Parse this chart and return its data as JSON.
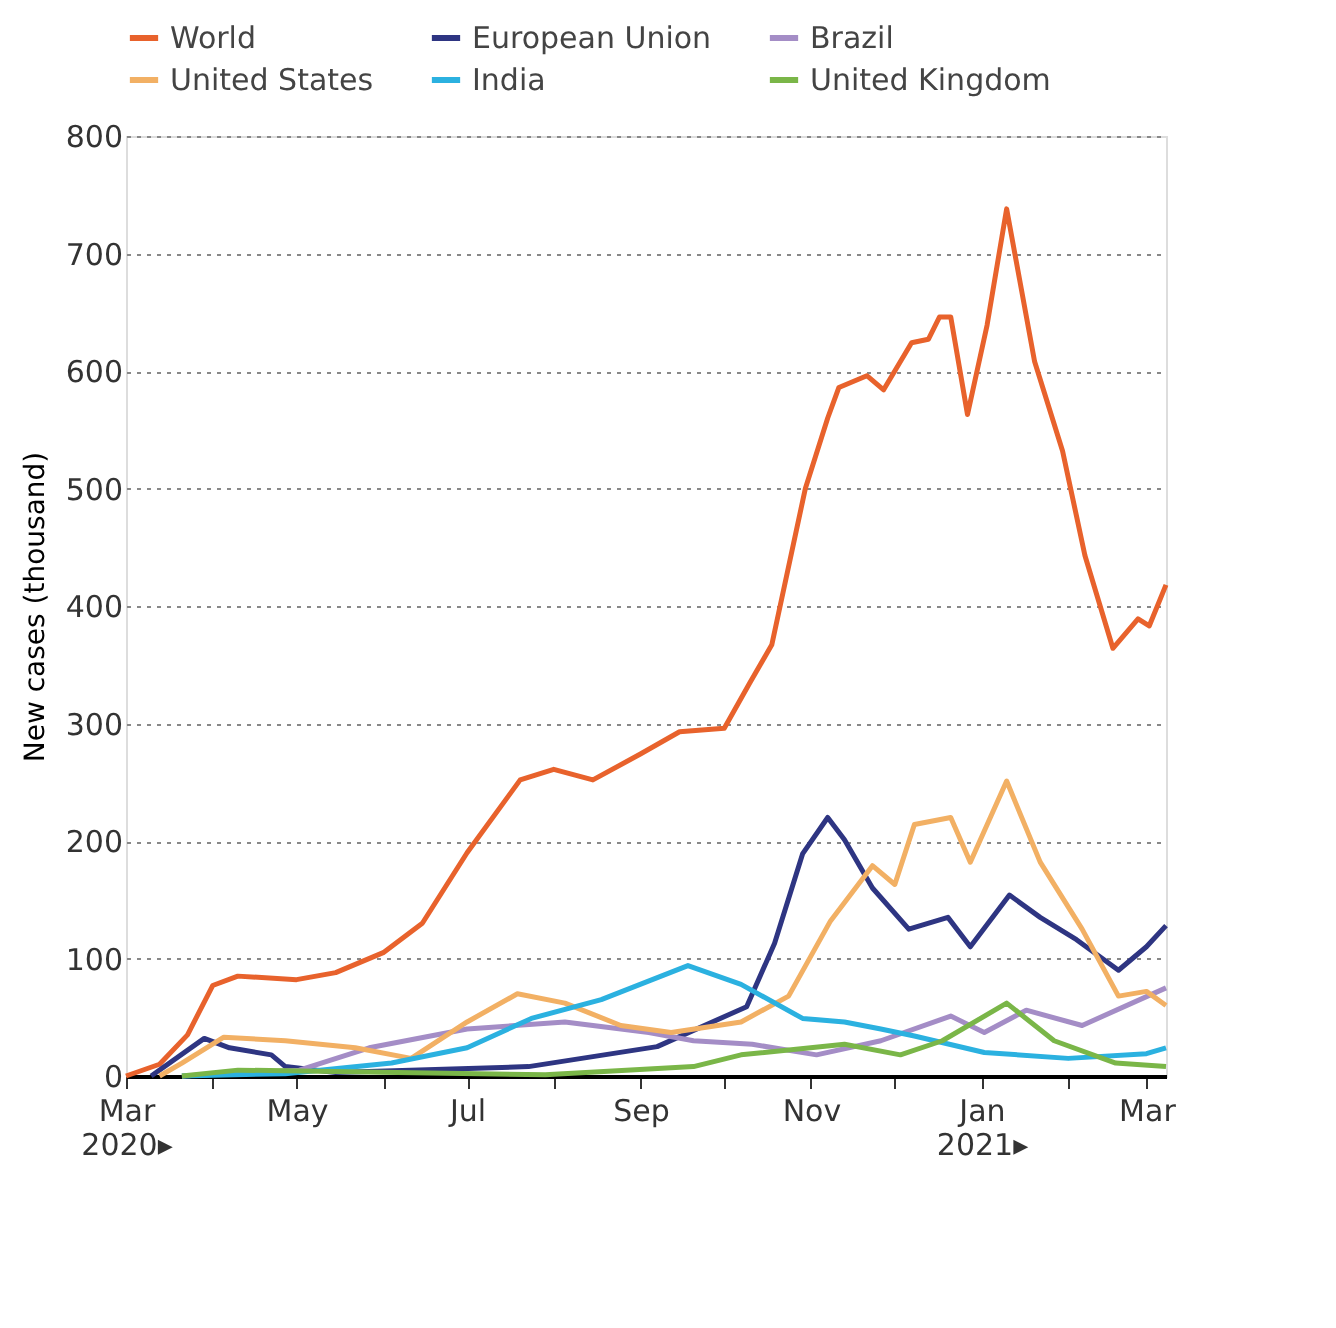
{
  "chart_data": {
    "type": "line",
    "ylabel": "New cases (thousand)",
    "xlim": [
      "2020-03-01",
      "2021-03-08"
    ],
    "ylim": [
      0,
      800
    ],
    "yticks": [
      0,
      100,
      200,
      300,
      400,
      500,
      600,
      700,
      800
    ],
    "xticks": [
      {
        "value": "2020-03-01",
        "label": "Mar\n2020▸"
      },
      {
        "value": "2020-04-01",
        "label": null
      },
      {
        "value": "2020-05-01",
        "label": "May"
      },
      {
        "value": "2020-06-01",
        "label": null
      },
      {
        "value": "2020-07-01",
        "label": "Jul"
      },
      {
        "value": "2020-08-01",
        "label": null
      },
      {
        "value": "2020-09-01",
        "label": "Sep"
      },
      {
        "value": "2020-10-01",
        "label": null
      },
      {
        "value": "2020-11-01",
        "label": "Nov"
      },
      {
        "value": "2020-12-01",
        "label": null
      },
      {
        "value": "2021-01-01",
        "label": "Jan\n2021▸"
      },
      {
        "value": "2021-02-01",
        "label": null
      },
      {
        "value": "2021-03-01",
        "label": "Mar"
      }
    ],
    "grid": "y",
    "legend": "top left",
    "marker": "none",
    "line_style": "solid",
    "series": [
      {
        "name": "World",
        "color": "#e8622c",
        "x": [
          "2020-03-01",
          "2020-03-13",
          "2020-03-23",
          "2020-04-01",
          "2020-04-10",
          "2020-05-01",
          "2020-05-15",
          "2020-06-01",
          "2020-06-15",
          "2020-07-01",
          "2020-07-20",
          "2020-08-01",
          "2020-08-15",
          "2020-09-01",
          "2020-09-15",
          "2020-10-01",
          "2020-10-10",
          "2020-10-18",
          "2020-10-30",
          "2020-11-07",
          "2020-11-11",
          "2020-11-21",
          "2020-11-27",
          "2020-12-07",
          "2020-12-13",
          "2020-12-17",
          "2020-12-21",
          "2020-12-27",
          "2021-01-03",
          "2021-01-10",
          "2021-01-20",
          "2021-01-30",
          "2021-02-07",
          "2021-02-17",
          "2021-02-26",
          "2021-03-02",
          "2021-03-08"
        ],
        "values": [
          0,
          10,
          35,
          77,
          85,
          82,
          88,
          105,
          130,
          190,
          252,
          261,
          252,
          274,
          293,
          296,
          334,
          367,
          500,
          560,
          586,
          596,
          584,
          624,
          627,
          646,
          646,
          563,
          639,
          738,
          608,
          532,
          443,
          364,
          389,
          383,
          418
        ]
      },
      {
        "name": "European Union",
        "color": "#2e3582",
        "x": [
          "2020-03-10",
          "2020-03-29",
          "2020-04-07",
          "2020-04-22",
          "2020-04-27",
          "2020-05-15",
          "2020-07-23",
          "2020-09-07",
          "2020-10-09",
          "2020-10-19",
          "2020-10-29",
          "2020-11-07",
          "2020-11-13",
          "2020-11-23",
          "2020-12-06",
          "2020-12-20",
          "2020-12-28",
          "2021-01-11",
          "2021-01-22",
          "2021-02-04",
          "2021-02-19",
          "2021-03-01",
          "2021-03-08"
        ],
        "values": [
          0,
          32,
          24,
          18,
          8,
          3,
          8,
          25,
          59,
          113,
          189,
          220,
          201,
          160,
          125,
          135,
          110,
          154,
          135,
          116,
          90,
          110,
          128
        ]
      },
      {
        "name": "Brazil",
        "color": "#a48dc6",
        "x": [
          "2020-03-21",
          "2020-05-02",
          "2020-05-27",
          "2020-07-01",
          "2020-08-05",
          "2020-09-04",
          "2020-09-20",
          "2020-10-11",
          "2020-11-03",
          "2020-11-26",
          "2020-12-21",
          "2021-01-02",
          "2021-01-17",
          "2021-02-06",
          "2021-03-08"
        ],
        "values": [
          0,
          5,
          24,
          40,
          46,
          37,
          30,
          27,
          18,
          30,
          51,
          37,
          56,
          43,
          75
        ]
      },
      {
        "name": "United States",
        "color": "#f2b064",
        "x": [
          "2020-03-13",
          "2020-03-21",
          "2020-04-05",
          "2020-04-27",
          "2020-05-22",
          "2020-06-11",
          "2020-07-01",
          "2020-07-19",
          "2020-08-05",
          "2020-08-25",
          "2020-09-12",
          "2020-10-07",
          "2020-10-24",
          "2020-11-08",
          "2020-11-23",
          "2020-12-01",
          "2020-12-08",
          "2020-12-21",
          "2020-12-28",
          "2021-01-10",
          "2021-01-22",
          "2021-02-06",
          "2021-02-19",
          "2021-03-01",
          "2021-03-08"
        ],
        "values": [
          0,
          11,
          33,
          30,
          24,
          15,
          46,
          70,
          62,
          43,
          37,
          46,
          68,
          132,
          179,
          163,
          214,
          220,
          182,
          251,
          182,
          125,
          68,
          72,
          60
        ]
      },
      {
        "name": "India",
        "color": "#2bb1e0",
        "x": [
          "2020-03-21",
          "2020-04-27",
          "2020-06-04",
          "2020-07-01",
          "2020-07-24",
          "2020-08-18",
          "2020-09-18",
          "2020-10-07",
          "2020-10-29",
          "2020-11-13",
          "2020-11-26",
          "2020-12-08",
          "2021-01-02",
          "2021-02-01",
          "2021-03-01",
          "2021-03-08"
        ],
        "values": [
          0,
          2,
          11,
          24,
          49,
          65,
          94,
          78,
          49,
          46,
          40,
          34,
          20,
          15,
          19,
          24
        ]
      },
      {
        "name": "United Kingdom",
        "color": "#7ab648",
        "x": [
          "2020-03-21",
          "2020-04-10",
          "2020-07-29",
          "2020-09-20",
          "2020-10-07",
          "2020-11-13",
          "2020-12-03",
          "2020-12-18",
          "2021-01-10",
          "2021-01-27",
          "2021-02-18",
          "2021-03-08"
        ],
        "values": [
          0,
          5,
          1,
          8,
          18,
          27,
          18,
          30,
          62,
          30,
          11,
          8
        ]
      }
    ]
  }
}
